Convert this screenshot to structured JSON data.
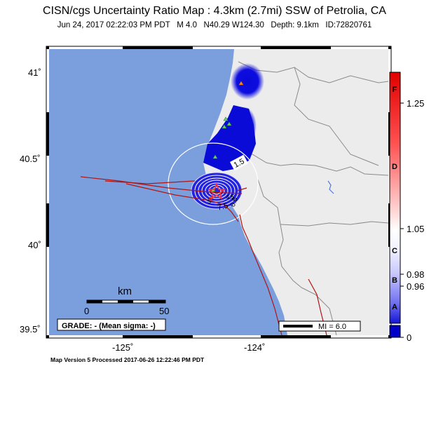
{
  "title": "CISN/cgs Uncertainty Ratio Map : 4.3km (2.7mi) SSW of Petrolia, CA",
  "subtitle": "Jun 24, 2017 02:22:03 PM PDT   M 4.0   N40.29 W124.30   Depth: 9.1km   ID:72820761",
  "footer": "Map Version 5 Processed 2017-06-26 12:22:46 PM PDT",
  "map": {
    "lat_ticks": [
      "41˚",
      "40.5˚",
      "40˚",
      "39.5˚"
    ],
    "lon_ticks": [
      "-125˚",
      "-124˚"
    ],
    "contour_labels": [
      "1.5",
      "7.5",
      "6.5",
      "4.5",
      "5"
    ],
    "scalebar": {
      "unit": "km",
      "start": "0",
      "end": "50"
    },
    "grade_box": "GRADE: - (Mean sigma: -)",
    "mi_legend": "MI = 6.0",
    "colors": {
      "ocean": "#7a9fdc",
      "land": "#ececec",
      "uncertainty_high": "#0a0ad6",
      "fault": "#b01515",
      "station": "#6bd36b",
      "border": "#8a8a8a"
    }
  },
  "colorbar": {
    "values": [
      "1.25",
      "1.05",
      "0.98",
      "0.96",
      "0"
    ],
    "grades": [
      "F",
      "D",
      "C",
      "B",
      "A"
    ]
  }
}
